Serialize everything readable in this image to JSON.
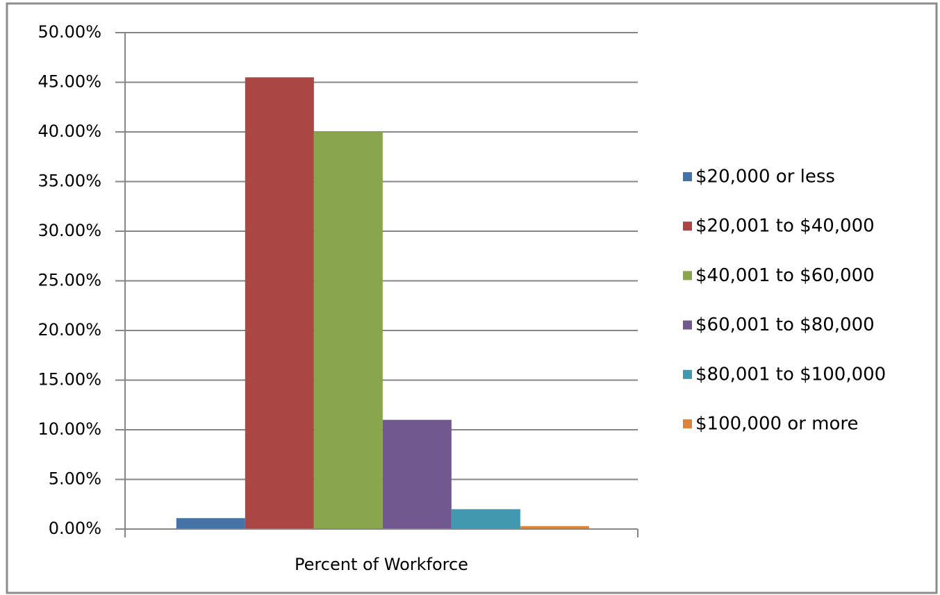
{
  "chart_data": {
    "type": "bar",
    "categories": [
      "Percent of Workforce"
    ],
    "series": [
      {
        "name": "$20,000 or less",
        "color": "#4572a7",
        "values": [
          1.1
        ]
      },
      {
        "name": "$20,001 to $40,000",
        "color": "#aa4643",
        "values": [
          45.5
        ]
      },
      {
        "name": "$40,001 to $60,000",
        "color": "#89a54e",
        "values": [
          40
        ]
      },
      {
        "name": "$60,001 to $80,000",
        "color": "#71588f",
        "values": [
          11
        ]
      },
      {
        "name": "$80,001 to $100,000",
        "color": "#4198af",
        "values": [
          2
        ]
      },
      {
        "name": "$100,000 or more",
        "color": "#db843d",
        "values": [
          0.3
        ]
      }
    ],
    "ylim": [
      0,
      50
    ],
    "yticks": [
      {
        "value": 0,
        "label": "0.00%"
      },
      {
        "value": 5,
        "label": "5.00%"
      },
      {
        "value": 10,
        "label": "10.00%"
      },
      {
        "value": 15,
        "label": "15.00%"
      },
      {
        "value": 20,
        "label": "20.00%"
      },
      {
        "value": 25,
        "label": "25.00%"
      },
      {
        "value": 30,
        "label": "30.00%"
      },
      {
        "value": 35,
        "label": "35.00%"
      },
      {
        "value": 40,
        "label": "40.00%"
      },
      {
        "value": 45,
        "label": "45.00%"
      },
      {
        "value": 50,
        "label": "50.00%"
      }
    ],
    "grid": true,
    "legend": "right"
  }
}
